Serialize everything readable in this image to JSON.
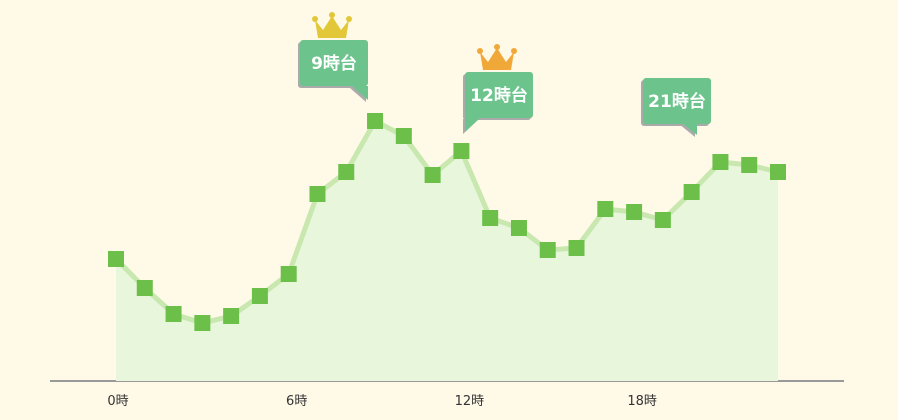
{
  "chart_data": {
    "type": "area",
    "categories": [
      "0時",
      null,
      null,
      null,
      null,
      null,
      "6時",
      null,
      null,
      null,
      null,
      null,
      "12時",
      null,
      null,
      null,
      null,
      null,
      "18時",
      null,
      null,
      null,
      null,
      null
    ],
    "values": [
      122,
      93,
      67,
      58,
      65,
      85,
      107,
      187,
      209,
      260,
      245,
      206,
      230,
      163,
      153,
      131,
      133,
      172,
      169,
      161,
      189,
      219,
      216,
      209
    ],
    "ylim": [
      0,
      300
    ],
    "color": "#6cc04a",
    "line_color": "#c8e8b0",
    "fill_color": "#e8f6dc",
    "annotations": [
      {
        "label": "9時台",
        "at": 9,
        "crown_color": "#e2c838"
      },
      {
        "label": "12時台",
        "at": 12,
        "crown_color": "#f0a838"
      },
      {
        "label": "21時台",
        "at": 21,
        "crown_color": null
      }
    ]
  }
}
